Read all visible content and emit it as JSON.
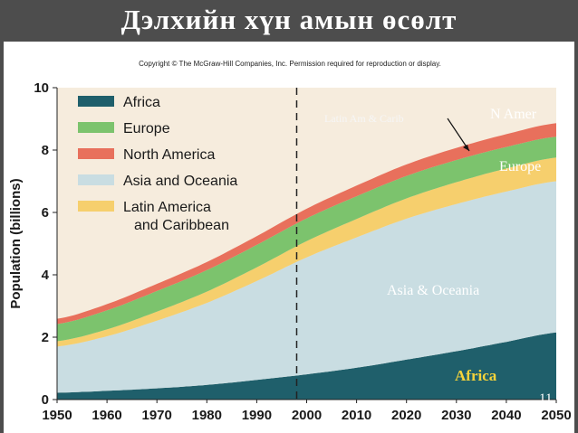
{
  "slide": {
    "title": "Дэлхийн хүн амын өсөлт",
    "copyright": "Copyright © The McGraw-Hill Companies, Inc. Permission required for reproduction or display.",
    "slide_number": "11"
  },
  "colors": {
    "africa": "#1f5f6b",
    "asia_oceania": "#c9dde2",
    "latin_america": "#f6cf6d",
    "europe": "#7cc36d",
    "north_america": "#e8705c",
    "background": "#f6ecdd",
    "title_bar": "#4d4d4d"
  },
  "annotations": {
    "n_amer": "N Amer",
    "latin_am": "Latin Am & Carib",
    "europe": "Europe",
    "asia": "Asia & Oceania",
    "africa": "Africa"
  },
  "chart_data": {
    "type": "area",
    "stacked": true,
    "title": "",
    "xlabel": "",
    "ylabel": "Population (billions)",
    "xlim": [
      1950,
      2050
    ],
    "ylim": [
      0,
      10
    ],
    "x_ticks": [
      "1950",
      "1960",
      "1970",
      "1980",
      "1990",
      "2000",
      "2010",
      "2020",
      "2030",
      "2040",
      "2050"
    ],
    "y_ticks": [
      "0",
      "2",
      "4",
      "6",
      "8",
      "10"
    ],
    "x": [
      1950,
      1960,
      1970,
      1980,
      1990,
      2000,
      2010,
      2020,
      2030,
      2040,
      2050
    ],
    "series": [
      {
        "name": "Africa",
        "values": [
          0.22,
          0.28,
          0.36,
          0.47,
          0.63,
          0.81,
          1.02,
          1.28,
          1.55,
          1.85,
          2.15
        ]
      },
      {
        "name": "Asia and Oceania",
        "values": [
          1.48,
          1.75,
          2.17,
          2.63,
          3.17,
          3.75,
          4.18,
          4.52,
          4.72,
          4.82,
          4.85
        ]
      },
      {
        "name": "Latin America and Caribbean",
        "values": [
          0.17,
          0.22,
          0.29,
          0.36,
          0.44,
          0.52,
          0.59,
          0.65,
          0.7,
          0.74,
          0.76
        ]
      },
      {
        "name": "Europe",
        "values": [
          0.55,
          0.61,
          0.66,
          0.69,
          0.72,
          0.73,
          0.73,
          0.72,
          0.71,
          0.69,
          0.67
        ]
      },
      {
        "name": "North America",
        "values": [
          0.17,
          0.2,
          0.23,
          0.26,
          0.28,
          0.31,
          0.34,
          0.37,
          0.39,
          0.41,
          0.43
        ]
      }
    ],
    "legend": {
      "placement": "top-left",
      "entries": [
        "Africa",
        "Europe",
        "North America",
        "Asia and Oceania",
        "Latin America and Caribbean"
      ],
      "colors": [
        "#1f5f6b",
        "#7cc36d",
        "#e8705c",
        "#c9dde2",
        "#f6cf6d"
      ]
    },
    "reference_line": {
      "x": 1998,
      "style": "dashed"
    },
    "grid": false
  }
}
